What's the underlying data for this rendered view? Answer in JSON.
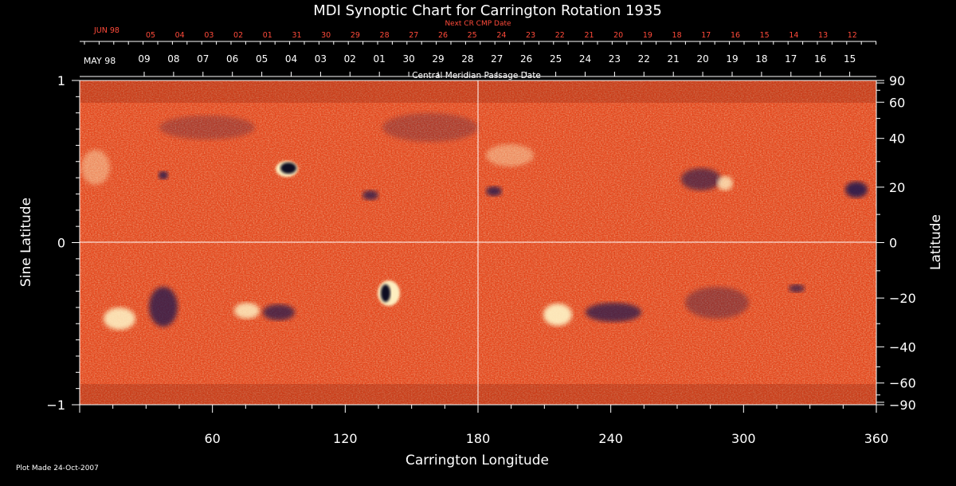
{
  "chart_data": {
    "type": "heatmap",
    "title": "MDI Synoptic Chart for Carrington Rotation 1935",
    "xlabel": "Carrington Longitude",
    "ylabel_left": "Sine Latitude",
    "ylabel_right": "Latitude",
    "xlim": [
      0,
      360
    ],
    "ylim": [
      -1,
      1
    ],
    "x_ticks": [
      60,
      120,
      180,
      240,
      300,
      360
    ],
    "y_ticks_left": [
      {
        "value": 1,
        "label": "1"
      },
      {
        "value": 0,
        "label": "0"
      },
      {
        "value": -1,
        "label": "−1"
      }
    ],
    "y_ticks_right": [
      90,
      60,
      40,
      20,
      0,
      -20,
      -40,
      -60,
      -90
    ],
    "cmp_axis_title": "Central Meridian Passage Date",
    "cmp_month_label": "MAY 98",
    "cmp_dates": [
      "09",
      "08",
      "07",
      "06",
      "05",
      "04",
      "03",
      "02",
      "01",
      "30",
      "29",
      "28",
      "27",
      "26",
      "25",
      "24",
      "23",
      "22",
      "21",
      "20",
      "19",
      "18",
      "17",
      "16",
      "15"
    ],
    "next_cr_title": "Next CR CMP Date",
    "next_cr_month_label": "JUN 98",
    "next_cr_dates": [
      "05",
      "04",
      "03",
      "02",
      "01",
      "31",
      "30",
      "29",
      "28",
      "27",
      "26",
      "25",
      "24",
      "23",
      "22",
      "21",
      "20",
      "19",
      "18",
      "17",
      "16",
      "15",
      "14",
      "13",
      "12"
    ],
    "footer": "Plot Made 24-Oct-2007",
    "grid": true,
    "colors": {
      "background": "#000000",
      "field_base": "#e8461c",
      "positive_flux": "#fff2b0",
      "negative_flux": "#14104a",
      "axis": "#ffffff",
      "next_cr_text": "#ff4a3a"
    }
  }
}
